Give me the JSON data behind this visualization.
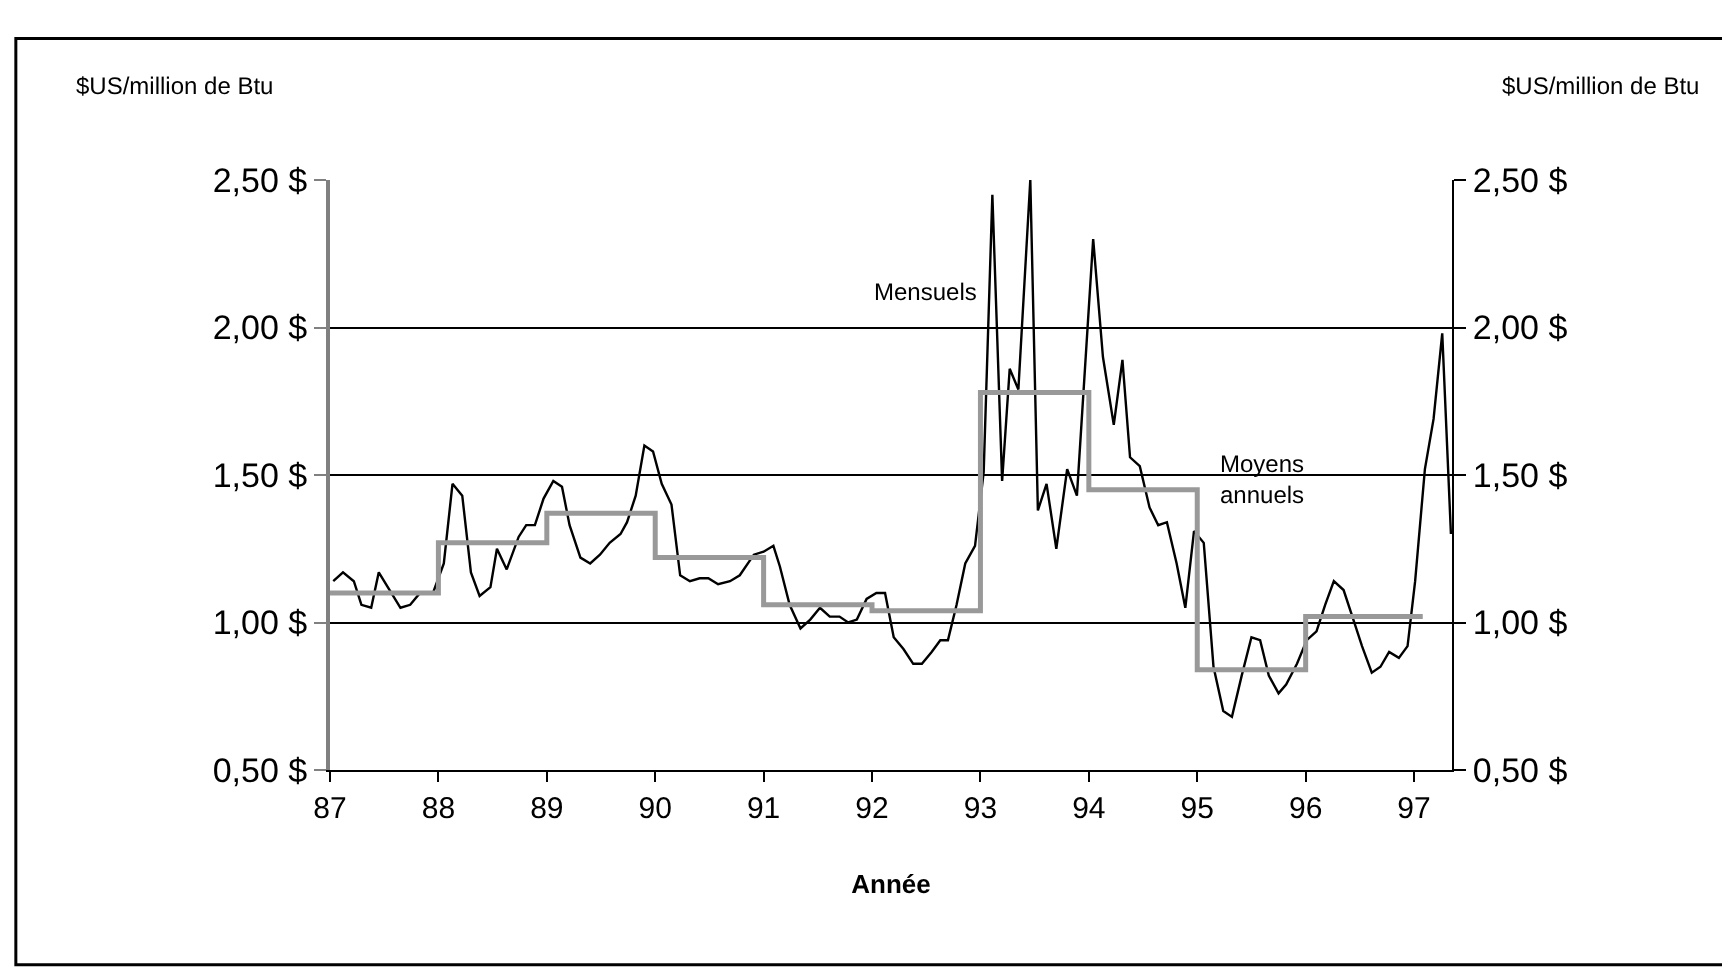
{
  "chart_data": {
    "type": "line",
    "xlabel": "Année",
    "ylabel": "$US/million de Btu",
    "y2label": "$US/million de Btu",
    "xlim": [
      87,
      97.35
    ],
    "xticks": [
      87,
      88,
      89,
      90,
      91,
      92,
      93,
      94,
      95,
      96,
      97
    ],
    "ylim": [
      0.5,
      2.5
    ],
    "yticks": [
      {
        "value": 0.5,
        "label": "0,50 $"
      },
      {
        "value": 1.0,
        "label": "1,00 $"
      },
      {
        "value": 1.5,
        "label": "1,50 $"
      },
      {
        "value": 2.0,
        "label": "2,00 $"
      },
      {
        "value": 2.5,
        "label": "2,50 $"
      }
    ],
    "y2lim": [
      0.5,
      2.5
    ],
    "y2ticks": [
      {
        "value": 0.5,
        "label": "0,50 $"
      },
      {
        "value": 1.0,
        "label": "1,00 $"
      },
      {
        "value": 1.5,
        "label": "1,50 $"
      },
      {
        "value": 2.0,
        "label": "2,00 $"
      },
      {
        "value": 2.5,
        "label": "2,50 $"
      }
    ],
    "grid": "y",
    "legend": false,
    "marker": "none",
    "series": [
      {
        "name": "Mensuels",
        "color": "#000000",
        "x": [
          87.03,
          87.12,
          87.22,
          87.29,
          87.38,
          87.45,
          87.55,
          87.65,
          87.74,
          87.83,
          87.95,
          88.05,
          88.13,
          88.22,
          88.3,
          88.38,
          88.48,
          88.54,
          88.63,
          88.74,
          88.81,
          88.89,
          88.97,
          89.06,
          89.14,
          89.21,
          89.31,
          89.4,
          89.49,
          89.58,
          89.68,
          89.74,
          89.82,
          89.9,
          89.98,
          90.06,
          90.15,
          90.23,
          90.32,
          90.41,
          90.49,
          90.58,
          90.69,
          90.78,
          90.91,
          91.0,
          91.09,
          91.15,
          91.24,
          91.34,
          91.43,
          91.52,
          91.61,
          91.7,
          91.78,
          91.86,
          91.95,
          92.04,
          92.12,
          92.2,
          92.29,
          92.38,
          92.46,
          92.55,
          92.63,
          92.7,
          92.78,
          92.86,
          92.95,
          93.03,
          93.11,
          93.2,
          93.27,
          93.35,
          93.46,
          93.53,
          93.61,
          93.7,
          93.8,
          93.89,
          94.04,
          94.13,
          94.23,
          94.31,
          94.38,
          94.47,
          94.56,
          94.64,
          94.72,
          94.81,
          94.89,
          94.97,
          95.06,
          95.15,
          95.24,
          95.32,
          95.41,
          95.5,
          95.58,
          95.66,
          95.75,
          95.82,
          95.92,
          96.01,
          96.1,
          96.18,
          96.26,
          96.35,
          96.44,
          96.52,
          96.61,
          96.69,
          96.77,
          96.86,
          96.94,
          97.01,
          97.1,
          97.18,
          97.26,
          97.34
        ],
        "values": [
          1.14,
          1.17,
          1.14,
          1.06,
          1.05,
          1.17,
          1.11,
          1.05,
          1.06,
          1.1,
          1.1,
          1.2,
          1.47,
          1.43,
          1.17,
          1.09,
          1.12,
          1.25,
          1.18,
          1.29,
          1.33,
          1.33,
          1.42,
          1.48,
          1.46,
          1.33,
          1.22,
          1.2,
          1.23,
          1.27,
          1.3,
          1.34,
          1.43,
          1.6,
          1.58,
          1.47,
          1.4,
          1.16,
          1.14,
          1.15,
          1.15,
          1.13,
          1.14,
          1.16,
          1.23,
          1.24,
          1.26,
          1.19,
          1.06,
          0.98,
          1.01,
          1.05,
          1.02,
          1.02,
          1.0,
          1.01,
          1.08,
          1.1,
          1.1,
          0.95,
          0.91,
          0.86,
          0.86,
          0.9,
          0.94,
          0.94,
          1.06,
          1.2,
          1.26,
          1.51,
          2.45,
          1.48,
          1.86,
          1.79,
          2.5,
          1.38,
          1.47,
          1.25,
          1.52,
          1.43,
          2.3,
          1.9,
          1.67,
          1.89,
          1.56,
          1.53,
          1.39,
          1.33,
          1.34,
          1.2,
          1.05,
          1.31,
          1.27,
          0.85,
          0.7,
          0.68,
          0.82,
          0.95,
          0.94,
          0.82,
          0.76,
          0.79,
          0.86,
          0.94,
          0.97,
          1.06,
          1.14,
          1.11,
          1.01,
          0.92,
          0.83,
          0.85,
          0.9,
          0.88,
          0.92,
          1.14,
          1.52,
          1.69,
          1.98,
          1.3
        ]
      },
      {
        "name": "Moyens annuels",
        "color": "#999999",
        "type": "step",
        "x": [
          87,
          88,
          89,
          90,
          91,
          92,
          93,
          94,
          95,
          96,
          97.08
        ],
        "values": [
          1.1,
          1.27,
          1.37,
          1.22,
          1.06,
          1.04,
          1.78,
          1.45,
          0.84,
          1.02,
          1.02
        ]
      }
    ]
  }
}
